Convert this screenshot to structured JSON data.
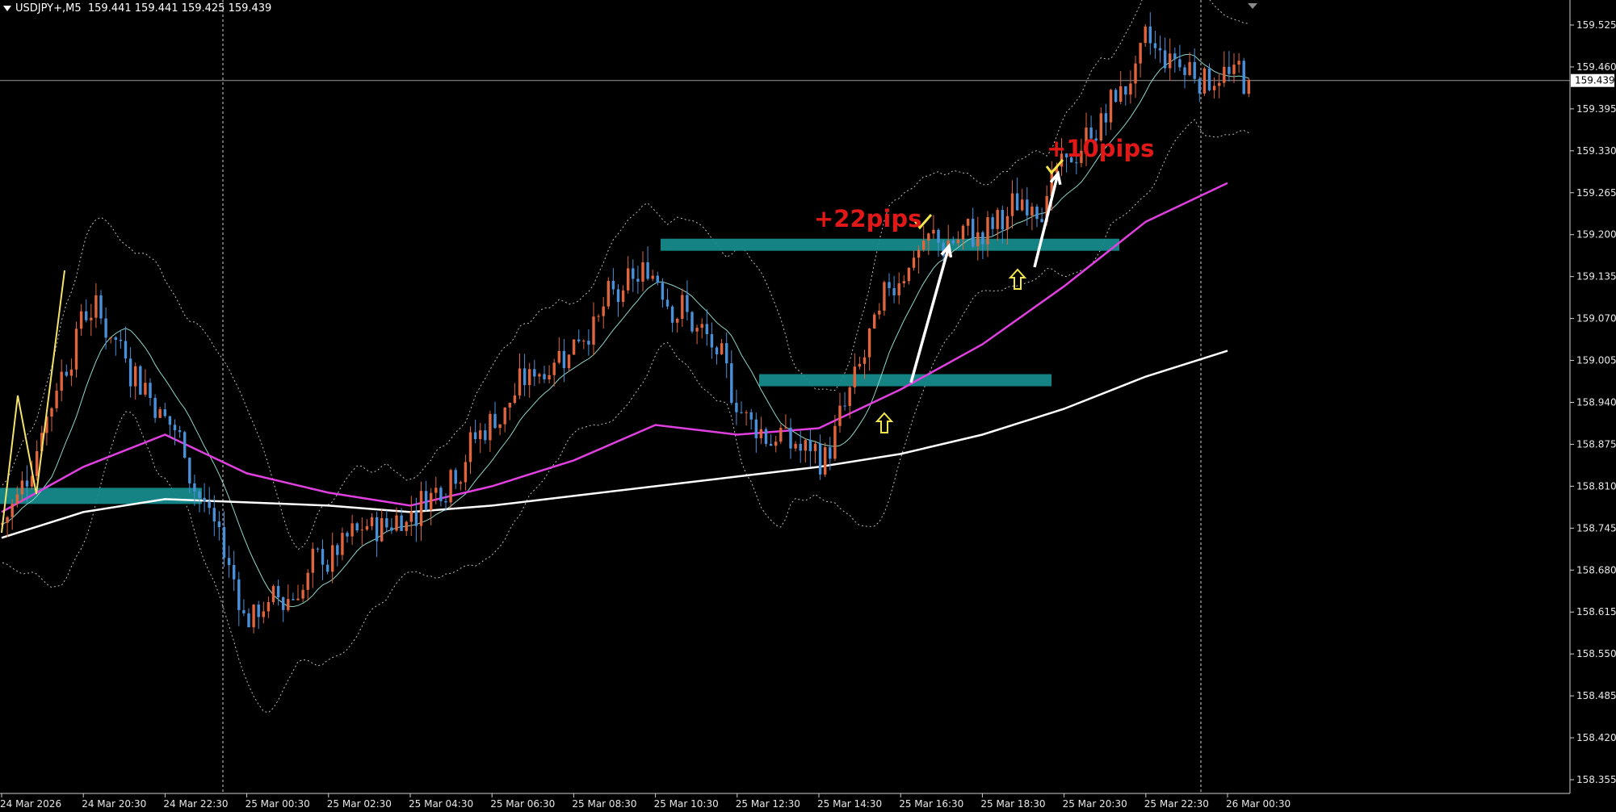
{
  "header": {
    "symbol": "USDJPY+,M5",
    "ohlc": "159.441 159.441 159.425 159.439"
  },
  "price_axis": {
    "ticks": [
      "159.525",
      "159.460",
      "159.395",
      "159.330",
      "159.265",
      "159.200",
      "159.135",
      "159.070",
      "159.005",
      "158.940",
      "158.875",
      "158.810",
      "158.745",
      "158.680",
      "158.615",
      "158.550",
      "158.485",
      "158.420",
      "158.355"
    ],
    "current_price": "159.439"
  },
  "time_axis": {
    "labels": [
      "24 Mar 2026",
      "24 Mar 20:30",
      "24 Mar 22:30",
      "25 Mar 00:30",
      "25 Mar 02:30",
      "25 Mar 04:30",
      "25 Mar 06:30",
      "25 Mar 08:30",
      "25 Mar 10:30",
      "25 Mar 12:30",
      "25 Mar 14:30",
      "25 Mar 16:30",
      "25 Mar 18:30",
      "25 Mar 20:30",
      "25 Mar 22:30",
      "26 Mar 00:30"
    ]
  },
  "annotations": {
    "label_22": "+22pips",
    "label_10": "+10pips"
  },
  "colors": {
    "background": "#000000",
    "bull_candle": "#e0643c",
    "bear_candle": "#4a90d9",
    "zone": "#168a8a",
    "ma_magenta": "#e040e0",
    "ma_white": "#ffffff",
    "annotation_red": "#e01818",
    "check_yellow": "#f2e64a"
  },
  "chart_data": {
    "type": "candlestick",
    "title": "",
    "y_range": [
      158.32,
      159.56
    ],
    "price_levels": {
      "zone_left": 158.795,
      "zone_upper": 159.185,
      "zone_lower": 158.975
    },
    "moving_average_magenta": [
      {
        "t": "24 Mar 2026",
        "y": 158.77
      },
      {
        "t": "24 Mar 20:30",
        "y": 158.84
      },
      {
        "t": "24 Mar 22:30",
        "y": 158.89
      },
      {
        "t": "25 Mar 00:30",
        "y": 158.83
      },
      {
        "t": "25 Mar 02:30",
        "y": 158.8
      },
      {
        "t": "25 Mar 04:30",
        "y": 158.78
      },
      {
        "t": "25 Mar 06:30",
        "y": 158.81
      },
      {
        "t": "25 Mar 08:30",
        "y": 158.85
      },
      {
        "t": "25 Mar 10:30",
        "y": 158.905
      },
      {
        "t": "25 Mar 12:30",
        "y": 158.89
      },
      {
        "t": "25 Mar 14:30",
        "y": 158.9
      },
      {
        "t": "25 Mar 16:30",
        "y": 158.96
      },
      {
        "t": "25 Mar 18:30",
        "y": 159.03
      },
      {
        "t": "25 Mar 20:30",
        "y": 159.12
      },
      {
        "t": "25 Mar 22:30",
        "y": 159.22
      },
      {
        "t": "26 Mar 00:30",
        "y": 159.28
      }
    ],
    "moving_average_white": [
      {
        "t": "24 Mar 2026",
        "y": 158.73
      },
      {
        "t": "24 Mar 20:30",
        "y": 158.77
      },
      {
        "t": "24 Mar 22:30",
        "y": 158.79
      },
      {
        "t": "25 Mar 00:30",
        "y": 158.785
      },
      {
        "t": "25 Mar 02:30",
        "y": 158.78
      },
      {
        "t": "25 Mar 04:30",
        "y": 158.77
      },
      {
        "t": "25 Mar 06:30",
        "y": 158.78
      },
      {
        "t": "25 Mar 08:30",
        "y": 158.795
      },
      {
        "t": "25 Mar 10:30",
        "y": 158.81
      },
      {
        "t": "25 Mar 12:30",
        "y": 158.825
      },
      {
        "t": "25 Mar 14:30",
        "y": 158.84
      },
      {
        "t": "25 Mar 16:30",
        "y": 158.86
      },
      {
        "t": "25 Mar 18:30",
        "y": 158.89
      },
      {
        "t": "25 Mar 20:30",
        "y": 158.93
      },
      {
        "t": "25 Mar 22:30",
        "y": 158.98
      },
      {
        "t": "26 Mar 00:30",
        "y": 159.02
      }
    ],
    "close_path": [
      {
        "t": "24 Mar 2026",
        "y": 158.75
      },
      {
        "t": "24 Mar 20:30",
        "y": 159.1
      },
      {
        "t": "24 Mar 22:30",
        "y": 158.92
      },
      {
        "t": "25 Mar 00:30",
        "y": 158.6
      },
      {
        "t": "25 Mar 02:30",
        "y": 158.7
      },
      {
        "t": "25 Mar 04:30",
        "y": 158.78
      },
      {
        "t": "25 Mar 06:30",
        "y": 158.92
      },
      {
        "t": "25 Mar 08:30",
        "y": 159.05
      },
      {
        "t": "25 Mar 10:30",
        "y": 159.15
      },
      {
        "t": "25 Mar 12:30",
        "y": 158.93
      },
      {
        "t": "25 Mar 14:30",
        "y": 158.84
      },
      {
        "t": "25 Mar 16:30",
        "y": 159.17
      },
      {
        "t": "25 Mar 18:30",
        "y": 159.2
      },
      {
        "t": "25 Mar 20:30",
        "y": 159.3
      },
      {
        "t": "25 Mar 22:30",
        "y": 159.49
      },
      {
        "t": "26 Mar 00:30",
        "y": 159.44
      }
    ]
  }
}
